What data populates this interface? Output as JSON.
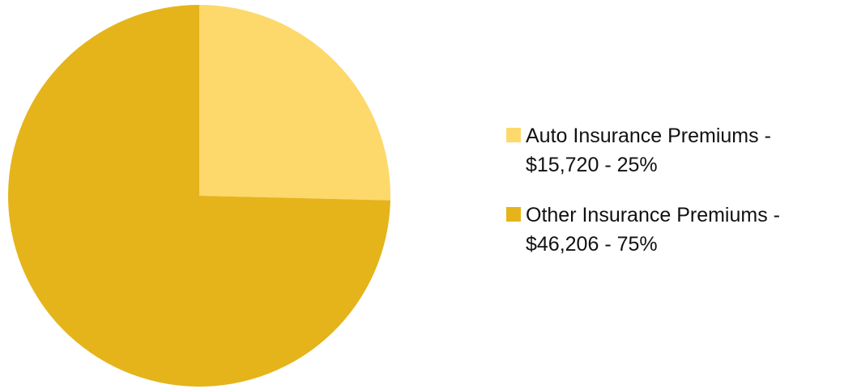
{
  "chart_data": {
    "type": "pie",
    "categories": [
      "Auto Insurance Premiums - $15,720 - 25%",
      "Other Insurance Premiums - $46,206 - 75%"
    ],
    "values": [
      15720,
      46206
    ],
    "colors": [
      "#fdd96b",
      "#e5b41a"
    ]
  }
}
